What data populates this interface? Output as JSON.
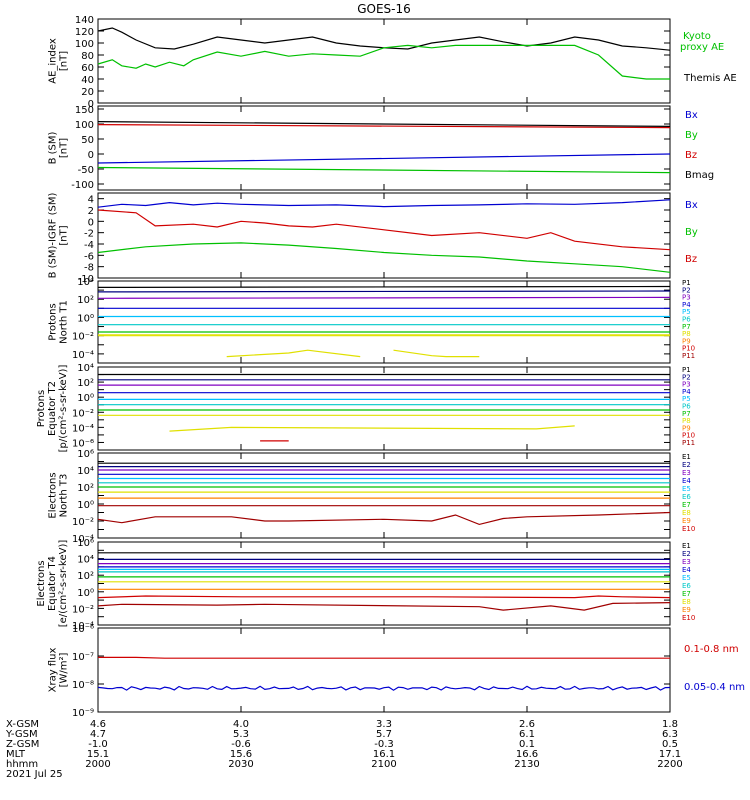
{
  "title": "GOES-16",
  "colors": {
    "black": "#000000",
    "red": "#d00000",
    "green": "#00c000",
    "blue": "#0000d0",
    "navy": "#000080",
    "purple": "#8000c0",
    "cyan": "#00c0ff",
    "teal": "#00c8c8",
    "yellow": "#e0e000",
    "orange": "#ff8000",
    "darkred": "#a00000"
  },
  "chart_data": [
    {
      "id": "ae",
      "type": "line",
      "ylabel": [
        "AE_index",
        "[nT]"
      ],
      "ylim": [
        0,
        140
      ],
      "yticks": [
        0,
        20,
        40,
        60,
        80,
        100,
        120,
        140
      ],
      "series": [
        {
          "name": "Themis AE",
          "color": "black",
          "x": [
            0,
            3,
            5,
            8,
            12,
            16,
            20,
            25,
            30,
            35,
            40,
            45,
            50,
            55,
            60,
            65,
            70,
            75,
            80,
            85,
            90,
            95,
            100,
            105,
            110,
            115,
            120
          ],
          "y": [
            120,
            125,
            118,
            105,
            92,
            90,
            98,
            110,
            105,
            100,
            105,
            110,
            100,
            95,
            92,
            90,
            100,
            105,
            110,
            102,
            95,
            100,
            110,
            105,
            95,
            92,
            88
          ]
        },
        {
          "name": "Kyoto proxy AE",
          "color": "green",
          "x": [
            0,
            3,
            5,
            8,
            10,
            12,
            15,
            18,
            20,
            25,
            30,
            35,
            40,
            45,
            50,
            55,
            60,
            65,
            70,
            75,
            80,
            85,
            90,
            95,
            100,
            105,
            110,
            115,
            120
          ],
          "y": [
            65,
            72,
            62,
            58,
            65,
            60,
            68,
            62,
            72,
            85,
            78,
            86,
            78,
            82,
            80,
            78,
            92,
            96,
            92,
            96,
            96,
            96,
            96,
            96,
            96,
            80,
            45,
            40,
            40
          ]
        }
      ]
    },
    {
      "id": "bsm",
      "type": "line",
      "ylabel": [
        "B (SM)",
        "[nT]"
      ],
      "ylim": [
        -120,
        160
      ],
      "yticks": [
        -100,
        -50,
        0,
        50,
        100,
        150
      ],
      "series": [
        {
          "name": "Bx",
          "color": "blue",
          "x": [
            0,
            120
          ],
          "y": [
            -30,
            0
          ]
        },
        {
          "name": "By",
          "color": "green",
          "x": [
            0,
            120
          ],
          "y": [
            -45,
            -62
          ]
        },
        {
          "name": "Bz",
          "color": "red",
          "x": [
            0,
            120
          ],
          "y": [
            98,
            88
          ]
        },
        {
          "name": "Bmag",
          "color": "black",
          "x": [
            0,
            120
          ],
          "y": [
            108,
            92
          ]
        }
      ]
    },
    {
      "id": "bdiff",
      "type": "line",
      "ylabel": [
        "B (SM)-IGRF (SM)",
        "[nT]"
      ],
      "ylim": [
        -10,
        5
      ],
      "yticks": [
        -10,
        -8,
        -6,
        -4,
        -2,
        0,
        2,
        4
      ],
      "series": [
        {
          "name": "Bx",
          "color": "blue",
          "x": [
            0,
            5,
            10,
            15,
            20,
            25,
            30,
            40,
            50,
            60,
            70,
            80,
            90,
            100,
            110,
            120
          ],
          "y": [
            2.5,
            3.0,
            2.8,
            3.3,
            2.9,
            3.2,
            3.0,
            2.8,
            2.9,
            2.6,
            2.8,
            2.9,
            3.1,
            3.0,
            3.3,
            3.8
          ]
        },
        {
          "name": "By",
          "color": "green",
          "x": [
            0,
            10,
            20,
            30,
            40,
            50,
            60,
            70,
            80,
            90,
            100,
            110,
            120
          ],
          "y": [
            -5.5,
            -4.5,
            -4.0,
            -3.8,
            -4.2,
            -4.8,
            -5.5,
            -6.0,
            -6.3,
            -7.0,
            -7.5,
            -8.0,
            -9.0
          ]
        },
        {
          "name": "Bz",
          "color": "red",
          "x": [
            0,
            8,
            12,
            20,
            25,
            30,
            35,
            40,
            45,
            50,
            60,
            70,
            80,
            90,
            95,
            100,
            110,
            120
          ],
          "y": [
            2.0,
            1.5,
            -0.8,
            -0.5,
            -1.0,
            0.0,
            -0.3,
            -0.8,
            -1.0,
            -0.5,
            -1.5,
            -2.5,
            -2.0,
            -3.0,
            -2.0,
            -3.5,
            -4.5,
            -5.0
          ]
        }
      ]
    },
    {
      "id": "p1",
      "type": "line",
      "ylabel": [
        "Protons",
        "North T1"
      ],
      "log": true,
      "ylim": [
        -5,
        4
      ],
      "ytick_labels": [
        "10⁴",
        "10²",
        "10⁰",
        "10⁻²",
        "10⁻⁴"
      ],
      "ytick_exps": [
        4,
        2,
        0,
        -2,
        -4
      ],
      "series": [
        {
          "name": "P1",
          "color": "black",
          "x": [
            0,
            120
          ],
          "y": [
            3.3,
            3.4
          ]
        },
        {
          "name": "P2",
          "color": "navy",
          "x": [
            0,
            120
          ],
          "y": [
            2.8,
            2.9
          ]
        },
        {
          "name": "P3",
          "color": "purple",
          "x": [
            0,
            120
          ],
          "y": [
            2.1,
            2.2
          ]
        },
        {
          "name": "P4",
          "color": "blue",
          "x": [
            0,
            120
          ],
          "y": [
            1.0,
            1.0
          ]
        },
        {
          "name": "P5",
          "color": "cyan",
          "x": [
            0,
            120
          ],
          "y": [
            0.1,
            0.1
          ]
        },
        {
          "name": "P6",
          "color": "teal",
          "x": [
            0,
            120
          ],
          "y": [
            -0.8,
            -0.8
          ]
        },
        {
          "name": "P7",
          "color": "green",
          "x": [
            0,
            120
          ],
          "y": [
            -1.6,
            -1.6
          ]
        },
        {
          "name": "P8",
          "color": "yellow",
          "x": [
            0,
            120
          ],
          "y": [
            -1.9,
            -1.9
          ]
        },
        {
          "name": "P9",
          "color": "yellow",
          "x": [
            0,
            120
          ],
          "y": [
            -2.0,
            -2.0
          ]
        },
        {
          "name": "P10",
          "color": "yellow",
          "x": [
            27,
            40,
            44,
            55
          ],
          "y": [
            -4.3,
            -3.9,
            -3.6,
            -4.3
          ]
        },
        {
          "name": "P11",
          "color": "yellow",
          "x": [
            62,
            70,
            73,
            80
          ],
          "y": [
            -3.6,
            -4.2,
            -4.3,
            -4.3
          ]
        }
      ]
    },
    {
      "id": "p2",
      "type": "line",
      "ylabel": [
        "Protons",
        "Equator T2",
        "[p/(cm²-s-sr-keV)]"
      ],
      "log": true,
      "ylim": [
        -7,
        4
      ],
      "ytick_labels": [
        "10⁴",
        "10²",
        "10⁰",
        "10⁻²",
        "10⁻⁴",
        "10⁻⁶"
      ],
      "ytick_exps": [
        4,
        2,
        0,
        -2,
        -4,
        -6
      ],
      "series": [
        {
          "name": "P1",
          "color": "black",
          "x": [
            0,
            120
          ],
          "y": [
            3.0,
            3.0
          ]
        },
        {
          "name": "P2",
          "color": "navy",
          "x": [
            0,
            120
          ],
          "y": [
            2.3,
            2.3
          ]
        },
        {
          "name": "P3",
          "color": "purple",
          "x": [
            0,
            120
          ],
          "y": [
            1.6,
            1.6
          ]
        },
        {
          "name": "P4",
          "color": "blue",
          "x": [
            0,
            120
          ],
          "y": [
            0.6,
            0.6
          ]
        },
        {
          "name": "P5",
          "color": "cyan",
          "x": [
            0,
            120
          ],
          "y": [
            -0.3,
            -0.3
          ]
        },
        {
          "name": "P6",
          "color": "teal",
          "x": [
            0,
            120
          ],
          "y": [
            -1.0,
            -1.0
          ]
        },
        {
          "name": "P7",
          "color": "green",
          "x": [
            0,
            120
          ],
          "y": [
            -1.7,
            -1.7
          ]
        },
        {
          "name": "P8",
          "color": "yellow",
          "x": [
            0,
            120
          ],
          "y": [
            -2.4,
            -2.4
          ]
        },
        {
          "name": "P9",
          "color": "yellow",
          "x": [
            15,
            28,
            92,
            100
          ],
          "y": [
            -4.5,
            -4.0,
            -4.2,
            -3.8
          ]
        },
        {
          "name": "P10",
          "color": "red",
          "x": [
            34,
            40
          ],
          "y": [
            -5.8,
            -5.8
          ]
        }
      ]
    },
    {
      "id": "e3",
      "type": "line",
      "ylabel": [
        "Electrons",
        "North T3"
      ],
      "log": true,
      "ylim": [
        -4,
        6
      ],
      "ytick_labels": [
        "10⁶",
        "10⁴",
        "10²",
        "10⁰",
        "10⁻²",
        "10⁻⁴"
      ],
      "ytick_exps": [
        6,
        4,
        2,
        0,
        -2,
        -4
      ],
      "series": [
        {
          "name": "E1",
          "color": "black",
          "x": [
            0,
            120
          ],
          "y": [
            4.8,
            4.8
          ]
        },
        {
          "name": "E2",
          "color": "navy",
          "x": [
            0,
            120
          ],
          "y": [
            4.4,
            4.4
          ]
        },
        {
          "name": "E3",
          "color": "purple",
          "x": [
            0,
            120
          ],
          "y": [
            4.0,
            4.0
          ]
        },
        {
          "name": "E4",
          "color": "blue",
          "x": [
            0,
            120
          ],
          "y": [
            3.5,
            3.5
          ]
        },
        {
          "name": "E5",
          "color": "cyan",
          "x": [
            0,
            120
          ],
          "y": [
            3.0,
            3.0
          ]
        },
        {
          "name": "E6",
          "color": "teal",
          "x": [
            0,
            120
          ],
          "y": [
            2.5,
            2.5
          ]
        },
        {
          "name": "E7",
          "color": "green",
          "x": [
            0,
            120
          ],
          "y": [
            2.0,
            2.0
          ]
        },
        {
          "name": "E8",
          "color": "yellow",
          "x": [
            0,
            120
          ],
          "y": [
            1.4,
            1.4
          ]
        },
        {
          "name": "E9",
          "color": "orange",
          "x": [
            0,
            120
          ],
          "y": [
            0.7,
            0.7
          ]
        },
        {
          "name": "E10",
          "color": "darkred",
          "x": [
            0,
            120
          ],
          "y": [
            -0.2,
            -0.2
          ]
        },
        {
          "name": "E10b",
          "color": "darkred",
          "x": [
            0,
            5,
            12,
            28,
            35,
            40,
            60,
            70,
            75,
            80,
            85,
            90,
            105,
            120
          ],
          "y": [
            -1.8,
            -2.2,
            -1.5,
            -1.5,
            -2.0,
            -2.0,
            -1.8,
            -2.0,
            -1.3,
            -2.4,
            -1.7,
            -1.5,
            -1.3,
            -1.0
          ]
        }
      ]
    },
    {
      "id": "e4",
      "type": "line",
      "ylabel": [
        "Electrons",
        "Equator T4",
        "[e/(cm²-s-sr-keV)]"
      ],
      "log": true,
      "ylim": [
        -4,
        6
      ],
      "ytick_labels": [
        "10⁶",
        "10⁴",
        "10²",
        "10⁰",
        "10⁻²",
        "10⁻⁴"
      ],
      "ytick_exps": [
        6,
        4,
        2,
        0,
        -2,
        -4
      ],
      "series": [
        {
          "name": "E1",
          "color": "black",
          "x": [
            0,
            120
          ],
          "y": [
            4.7,
            4.7
          ]
        },
        {
          "name": "E2",
          "color": "navy",
          "x": [
            0,
            120
          ],
          "y": [
            3.9,
            3.9
          ]
        },
        {
          "name": "E3",
          "color": "purple",
          "x": [
            0,
            120
          ],
          "y": [
            3.4,
            3.4
          ]
        },
        {
          "name": "E4",
          "color": "blue",
          "x": [
            0,
            120
          ],
          "y": [
            3.0,
            3.0
          ]
        },
        {
          "name": "E5",
          "color": "cyan",
          "x": [
            0,
            120
          ],
          "y": [
            2.7,
            2.7
          ]
        },
        {
          "name": "E6",
          "color": "teal",
          "x": [
            0,
            120
          ],
          "y": [
            2.4,
            2.4
          ]
        },
        {
          "name": "E7",
          "color": "green",
          "x": [
            0,
            120
          ],
          "y": [
            1.8,
            1.8
          ]
        },
        {
          "name": "E8",
          "color": "yellow",
          "x": [
            0,
            120
          ],
          "y": [
            1.2,
            1.2
          ]
        },
        {
          "name": "E9",
          "color": "orange",
          "x": [
            0,
            120
          ],
          "y": [
            0.3,
            0.3
          ]
        },
        {
          "name": "E10",
          "color": "red",
          "x": [
            0,
            10,
            30,
            60,
            70,
            100,
            105,
            110,
            120
          ],
          "y": [
            -0.7,
            -0.5,
            -0.6,
            -0.6,
            -0.6,
            -0.7,
            -0.5,
            -0.6,
            -0.7
          ]
        },
        {
          "name": "E10b",
          "color": "darkred",
          "x": [
            0,
            5,
            25,
            35,
            80,
            85,
            95,
            102,
            108,
            120
          ],
          "y": [
            -1.7,
            -1.5,
            -1.6,
            -1.5,
            -1.8,
            -2.2,
            -1.7,
            -2.2,
            -1.4,
            -1.3
          ]
        }
      ]
    },
    {
      "id": "xray",
      "type": "line",
      "ylabel": [
        "Xray flux",
        "[W/m²]"
      ],
      "log": true,
      "ylim": [
        -9,
        -6
      ],
      "ytick_labels": [
        "10⁻⁶",
        "10⁻⁷",
        "10⁻⁸",
        "10⁻⁹"
      ],
      "ytick_exps": [
        -6,
        -7,
        -8,
        -9
      ],
      "series": [
        {
          "name": "0.1-0.8 nm",
          "color": "red",
          "x": [
            0,
            8,
            14,
            120
          ],
          "y": [
            -7.05,
            -7.05,
            -7.08,
            -7.08
          ]
        },
        {
          "name": "0.05-0.4 nm",
          "color": "blue",
          "x": [
            0,
            120
          ],
          "y": [
            -8.15,
            -8.15
          ],
          "noisy": true
        }
      ]
    }
  ],
  "ae_legend": {
    "kyoto": [
      "Kyoto",
      "proxy AE"
    ],
    "themis": "Themis AE"
  },
  "bsm_legend": [
    "Bx",
    "By",
    "Bz",
    "Bmag"
  ],
  "bdiff_legend": [
    "Bx",
    "By",
    "Bz"
  ],
  "xray_legend": [
    "0.1-0.8 nm",
    "0.05-0.4 nm"
  ],
  "proton_legend": [
    "P1",
    "P2",
    "P3",
    "P4",
    "P5",
    "P6",
    "P7",
    "P8",
    "P9",
    "P10",
    "P11"
  ],
  "electron_legend": [
    "E1",
    "E2",
    "E3",
    "E4",
    "E5",
    "E6",
    "E7",
    "E8",
    "E9",
    "E10"
  ],
  "xaxis": {
    "row_labels": [
      "X-GSM",
      "Y-GSM",
      "Z-GSM",
      "MLT",
      "hhmm",
      "2021 Jul 25"
    ],
    "ticks": [
      {
        "x": 0,
        "values": [
          "4.6",
          "4.7",
          "-1.0",
          "15.1",
          "2000"
        ]
      },
      {
        "x": 30,
        "values": [
          "4.0",
          "5.3",
          "-0.6",
          "15.6",
          "2030"
        ]
      },
      {
        "x": 60,
        "values": [
          "3.3",
          "5.7",
          "-0.3",
          "16.1",
          "2100"
        ]
      },
      {
        "x": 90,
        "values": [
          "2.6",
          "6.1",
          "0.1",
          "16.6",
          "2130"
        ]
      },
      {
        "x": 120,
        "values": [
          "1.8",
          "6.3",
          "0.5",
          "17.1",
          "2200"
        ]
      }
    ]
  }
}
